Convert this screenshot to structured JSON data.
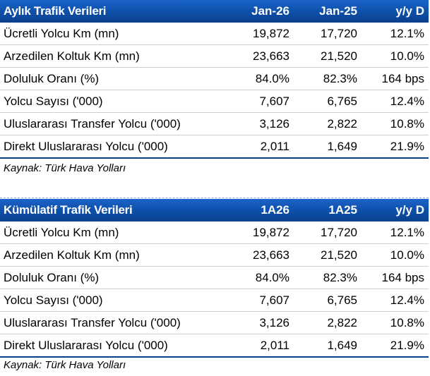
{
  "monthly": {
    "header": [
      "Aylık Trafik Verileri",
      "Jan-26",
      "Jan-25",
      "y/y D"
    ],
    "rows": [
      [
        "Ücretli Yolcu Km (mn)",
        "19,872",
        "17,720",
        "12.1%"
      ],
      [
        "Arzedilen Koltuk Km (mn)",
        "23,663",
        "21,520",
        "10.0%"
      ],
      [
        "Doluluk Oranı (%)",
        "84.0%",
        "82.3%",
        "164 bps"
      ],
      [
        "Yolcu Sayısı ('000)",
        "7,607",
        "6,765",
        "12.4%"
      ],
      [
        "Uluslararası Transfer Yolcu ('000)",
        "3,126",
        "2,822",
        "10.8%"
      ],
      [
        "Direkt Uluslararası Yolcu ('000)",
        "2,011",
        "1,649",
        "21.9%"
      ]
    ],
    "source": "Kaynak: Türk Hava Yolları"
  },
  "cumulative": {
    "header": [
      "Kümülatif Trafik Verileri",
      "1A26",
      "1A25",
      "y/y D"
    ],
    "rows": [
      [
        "Ücretli Yolcu Km (mn)",
        "19,872",
        "17,720",
        "12.1%"
      ],
      [
        "Arzedilen Koltuk Km (mn)",
        "23,663",
        "21,520",
        "10.0%"
      ],
      [
        "Doluluk Oranı (%)",
        "84.0%",
        "82.3%",
        "164 bps"
      ],
      [
        "Yolcu Sayısı ('000)",
        "7,607",
        "6,765",
        "12.4%"
      ],
      [
        "Uluslararası Transfer Yolcu ('000)",
        "3,126",
        "2,822",
        "10.8%"
      ],
      [
        "Direkt Uluslararası Yolcu ('000)",
        "2,011",
        "1,649",
        "21.9%"
      ]
    ],
    "source": "Kaynak: Türk Hava Yolları"
  }
}
